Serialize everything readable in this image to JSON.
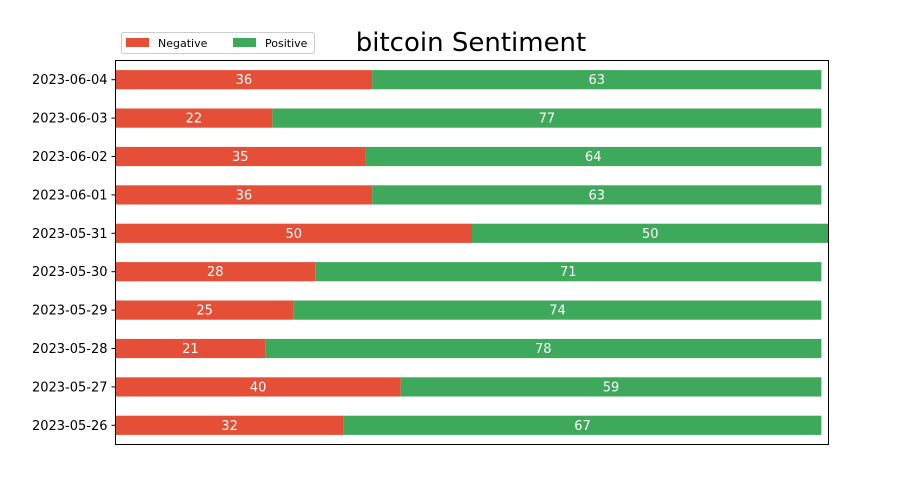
{
  "chart_data": {
    "type": "bar",
    "orientation": "horizontal",
    "stacked": true,
    "title": "bitcoin Sentiment",
    "xlabel": "",
    "ylabel": "",
    "xlim": [
      0,
      100
    ],
    "grid": false,
    "legend_position": "top-left",
    "categories": [
      "2023-06-04",
      "2023-06-03",
      "2023-06-02",
      "2023-06-01",
      "2023-05-31",
      "2023-05-30",
      "2023-05-29",
      "2023-05-28",
      "2023-05-27",
      "2023-05-26"
    ],
    "series": [
      {
        "name": "Negative",
        "color": "#e64f37",
        "values": [
          36,
          22,
          35,
          36,
          50,
          28,
          25,
          21,
          40,
          32
        ]
      },
      {
        "name": "Positive",
        "color": "#3ea95b",
        "values": [
          63,
          77,
          64,
          63,
          50,
          71,
          74,
          78,
          59,
          67
        ]
      }
    ]
  }
}
